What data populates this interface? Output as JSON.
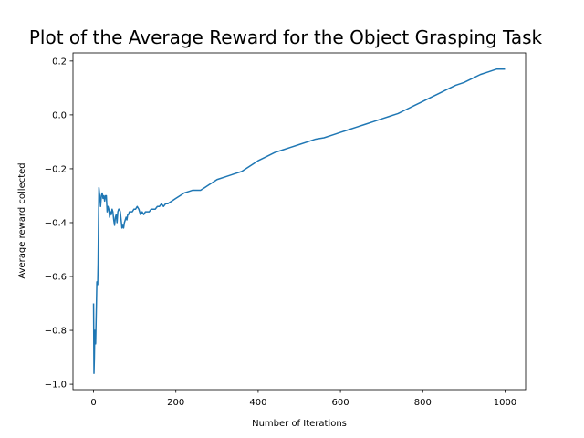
{
  "chart_data": {
    "type": "line",
    "title": "Plot of the Average Reward for the Object Grasping Task",
    "xlabel": "Number of Iterations",
    "ylabel": "Average reward collected",
    "xlim": [
      -50,
      1050
    ],
    "ylim": [
      -1.02,
      0.23
    ],
    "xticks": [
      0,
      200,
      400,
      600,
      800,
      1000
    ],
    "yticks": [
      -1.0,
      -0.8,
      -0.6,
      -0.4,
      -0.2,
      0.0,
      0.2
    ],
    "xtick_labels": [
      "0",
      "200",
      "400",
      "600",
      "800",
      "1000"
    ],
    "ytick_labels": [
      "−1.0",
      "−0.8",
      "−0.6",
      "−0.4",
      "−0.2",
      "0.0",
      "0.2"
    ],
    "grid": false,
    "line_color": "#1f77b4",
    "series": [
      {
        "x": [
          0,
          1,
          2,
          3,
          5,
          7,
          8,
          10,
          11,
          12,
          13,
          15,
          17,
          19,
          21,
          23,
          25,
          27,
          29,
          31,
          33,
          35,
          37,
          39,
          41,
          43,
          45,
          47,
          49,
          51,
          53,
          55,
          57,
          59,
          61,
          63,
          65,
          67,
          69,
          71,
          73,
          75,
          77,
          79,
          81,
          83,
          85,
          87,
          90,
          94,
          98,
          102,
          106,
          110,
          114,
          118,
          122,
          126,
          130,
          135,
          140,
          145,
          150,
          155,
          160,
          165,
          170,
          175,
          180,
          190,
          200,
          210,
          220,
          230,
          240,
          250,
          260,
          270,
          280,
          290,
          300,
          320,
          340,
          360,
          380,
          400,
          420,
          440,
          460,
          480,
          500,
          520,
          540,
          560,
          580,
          600,
          620,
          640,
          660,
          680,
          700,
          720,
          740,
          760,
          780,
          800,
          820,
          840,
          860,
          880,
          900,
          920,
          940,
          960,
          980,
          1000
        ],
        "y": [
          -0.7,
          -0.96,
          -0.9,
          -0.8,
          -0.85,
          -0.7,
          -0.62,
          -0.63,
          -0.55,
          -0.4,
          -0.27,
          -0.3,
          -0.34,
          -0.3,
          -0.29,
          -0.31,
          -0.3,
          -0.32,
          -0.3,
          -0.3,
          -0.36,
          -0.34,
          -0.35,
          -0.38,
          -0.36,
          -0.37,
          -0.35,
          -0.36,
          -0.39,
          -0.41,
          -0.38,
          -0.37,
          -0.4,
          -0.36,
          -0.35,
          -0.35,
          -0.36,
          -0.39,
          -0.42,
          -0.41,
          -0.42,
          -0.4,
          -0.39,
          -0.38,
          -0.39,
          -0.37,
          -0.37,
          -0.36,
          -0.36,
          -0.36,
          -0.35,
          -0.35,
          -0.34,
          -0.35,
          -0.37,
          -0.36,
          -0.37,
          -0.36,
          -0.36,
          -0.36,
          -0.35,
          -0.35,
          -0.35,
          -0.34,
          -0.34,
          -0.33,
          -0.34,
          -0.33,
          -0.33,
          -0.32,
          -0.31,
          -0.3,
          -0.29,
          -0.285,
          -0.28,
          -0.28,
          -0.28,
          -0.27,
          -0.26,
          -0.25,
          -0.24,
          -0.23,
          -0.22,
          -0.21,
          -0.19,
          -0.17,
          -0.155,
          -0.14,
          -0.13,
          -0.12,
          -0.11,
          -0.1,
          -0.09,
          -0.085,
          -0.075,
          -0.065,
          -0.055,
          -0.045,
          -0.035,
          -0.025,
          -0.015,
          -0.005,
          0.005,
          0.02,
          0.035,
          0.05,
          0.065,
          0.08,
          0.095,
          0.11,
          0.12,
          0.135,
          0.15,
          0.16,
          0.17,
          0.17
        ]
      }
    ]
  }
}
